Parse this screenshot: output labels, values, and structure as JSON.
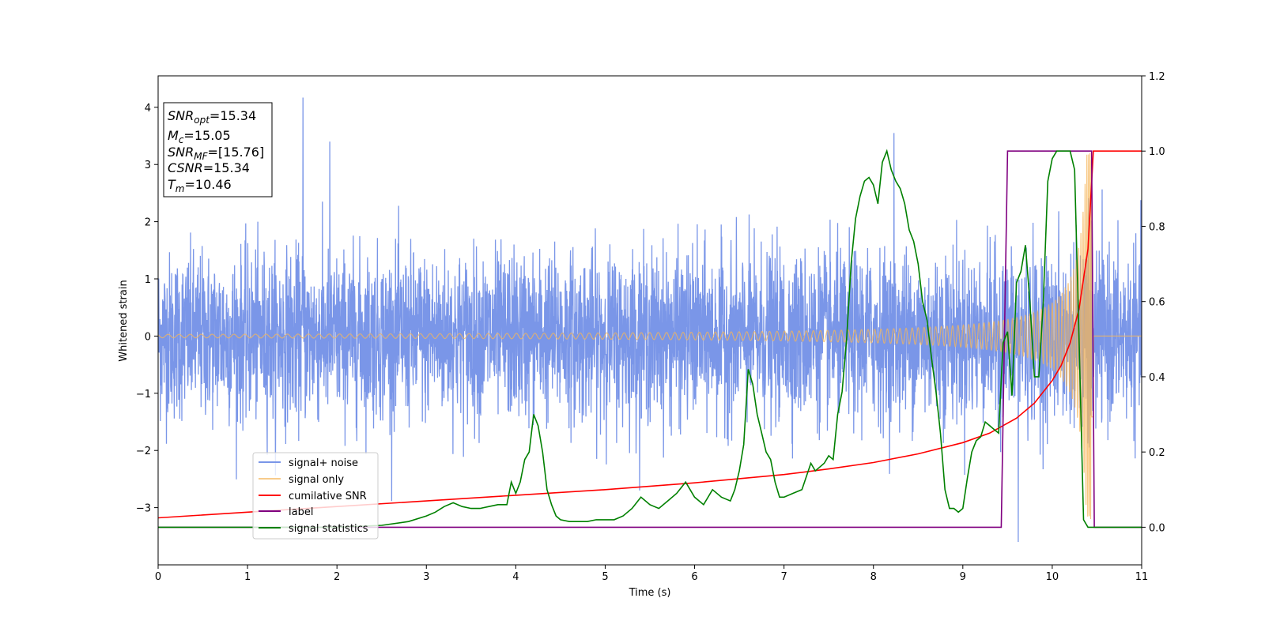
{
  "chart_data": {
    "type": "line",
    "title": "",
    "xlabel": "Time (s)",
    "ylabel": "Whitened strain",
    "xlim": [
      0,
      11
    ],
    "ylim": [
      -4,
      4.55
    ],
    "y2lim": [
      -0.1,
      1.2
    ],
    "xticks": [
      "0",
      "1",
      "2",
      "3",
      "4",
      "5",
      "6",
      "7",
      "8",
      "9",
      "10",
      "11"
    ],
    "yticks": [
      "−3",
      "−2",
      "−1",
      "0",
      "1",
      "2",
      "3",
      "4"
    ],
    "y2ticks": [
      "0.0",
      "0.2",
      "0.4",
      "0.6",
      "0.8",
      "1.0",
      "1.2"
    ],
    "grid": false,
    "legend_position": "lower-left",
    "info_box": {
      "lines": [
        {
          "base": "SNR",
          "sub": "opt",
          "value": "=15.34"
        },
        {
          "base": "M",
          "sub": "c",
          "value": "=15.05"
        },
        {
          "base": "SNR",
          "sub": "MF",
          "value": "=[15.76]"
        },
        {
          "base": "CSNR",
          "sub": "",
          "value": "=15.34"
        },
        {
          "base": "T",
          "sub": "m",
          "value": "=10.46"
        }
      ]
    },
    "series": [
      {
        "name": "signal+ noise",
        "color": "#7a96e8",
        "axis": "left",
        "description_values": {
          "spread_typical": 1.7,
          "notable_peaks": [
            [
              1.62,
              4.17
            ],
            [
              8.23,
              3.55
            ],
            [
              1.92,
              3.4
            ],
            [
              9.62,
              -3.6
            ]
          ]
        }
      },
      {
        "name": "signal only",
        "color": "#f5b55a",
        "axis": "left",
        "chirp": {
          "t_merge": 10.46,
          "f_start": 8,
          "amp_start": 0.03,
          "amp_end": 3.2
        }
      },
      {
        "name": "cumilative SNR",
        "color": "#ff0000",
        "axis": "right",
        "x": [
          0,
          1,
          2,
          3,
          4,
          5,
          6,
          7,
          7.5,
          8,
          8.5,
          9,
          9.3,
          9.6,
          9.8,
          10,
          10.1,
          10.2,
          10.3,
          10.4,
          10.46,
          11
        ],
        "y": [
          0.025,
          0.04,
          0.055,
          0.07,
          0.085,
          0.1,
          0.118,
          0.14,
          0.155,
          0.172,
          0.195,
          0.225,
          0.25,
          0.29,
          0.33,
          0.39,
          0.43,
          0.49,
          0.58,
          0.74,
          1.0,
          1.0
        ]
      },
      {
        "name": "label",
        "color": "#800080",
        "axis": "right",
        "x": [
          0,
          9.43,
          9.5,
          10.44,
          10.47,
          11
        ],
        "y": [
          0,
          0,
          1,
          1,
          0,
          0
        ]
      },
      {
        "name": "signal statistics",
        "color": "#008000",
        "axis": "right",
        "x": [
          0,
          1,
          2,
          2.5,
          2.8,
          3,
          3.1,
          3.2,
          3.3,
          3.4,
          3.5,
          3.6,
          3.7,
          3.8,
          3.9,
          3.95,
          4.0,
          4.05,
          4.1,
          4.15,
          4.2,
          4.25,
          4.3,
          4.35,
          4.4,
          4.45,
          4.5,
          4.6,
          4.7,
          4.8,
          4.9,
          5.0,
          5.1,
          5.2,
          5.3,
          5.4,
          5.5,
          5.6,
          5.7,
          5.8,
          5.9,
          6.0,
          6.1,
          6.2,
          6.3,
          6.4,
          6.45,
          6.5,
          6.55,
          6.6,
          6.65,
          6.7,
          6.75,
          6.8,
          6.85,
          6.9,
          6.95,
          7.0,
          7.1,
          7.2,
          7.3,
          7.35,
          7.4,
          7.45,
          7.5,
          7.55,
          7.6,
          7.65,
          7.7,
          7.75,
          7.8,
          7.85,
          7.9,
          7.95,
          8.0,
          8.05,
          8.1,
          8.15,
          8.2,
          8.25,
          8.3,
          8.35,
          8.4,
          8.45,
          8.5,
          8.55,
          8.6,
          8.65,
          8.7,
          8.75,
          8.8,
          8.85,
          8.9,
          8.95,
          9.0,
          9.05,
          9.1,
          9.15,
          9.2,
          9.25,
          9.3,
          9.35,
          9.4,
          9.45,
          9.5,
          9.55,
          9.6,
          9.65,
          9.7,
          9.75,
          9.8,
          9.85,
          9.9,
          9.95,
          10.0,
          10.05,
          10.1,
          10.15,
          10.2,
          10.25,
          10.3,
          10.35,
          10.4,
          10.45,
          10.5,
          10.55,
          10.6,
          10.7,
          11
        ],
        "y": [
          0.0,
          0.0,
          0.0,
          0.005,
          0.015,
          0.03,
          0.04,
          0.055,
          0.065,
          0.055,
          0.05,
          0.05,
          0.055,
          0.06,
          0.06,
          0.12,
          0.09,
          0.12,
          0.18,
          0.2,
          0.3,
          0.27,
          0.2,
          0.1,
          0.06,
          0.03,
          0.02,
          0.015,
          0.015,
          0.015,
          0.02,
          0.02,
          0.02,
          0.03,
          0.05,
          0.08,
          0.06,
          0.05,
          0.07,
          0.09,
          0.12,
          0.08,
          0.06,
          0.1,
          0.08,
          0.07,
          0.1,
          0.15,
          0.22,
          0.42,
          0.38,
          0.3,
          0.25,
          0.2,
          0.18,
          0.12,
          0.08,
          0.08,
          0.09,
          0.1,
          0.17,
          0.15,
          0.16,
          0.17,
          0.19,
          0.18,
          0.3,
          0.36,
          0.5,
          0.7,
          0.82,
          0.88,
          0.92,
          0.93,
          0.91,
          0.86,
          0.97,
          1.0,
          0.95,
          0.92,
          0.9,
          0.86,
          0.79,
          0.76,
          0.7,
          0.6,
          0.55,
          0.45,
          0.36,
          0.25,
          0.1,
          0.05,
          0.05,
          0.04,
          0.05,
          0.13,
          0.2,
          0.23,
          0.24,
          0.28,
          0.27,
          0.26,
          0.25,
          0.49,
          0.52,
          0.35,
          0.65,
          0.68,
          0.75,
          0.6,
          0.4,
          0.4,
          0.6,
          0.92,
          0.98,
          1.0,
          1.0,
          1.0,
          1.0,
          0.95,
          0.5,
          0.02,
          0.0,
          0.0,
          0.0,
          0.0,
          0.0,
          0.0,
          0.0
        ]
      }
    ]
  }
}
